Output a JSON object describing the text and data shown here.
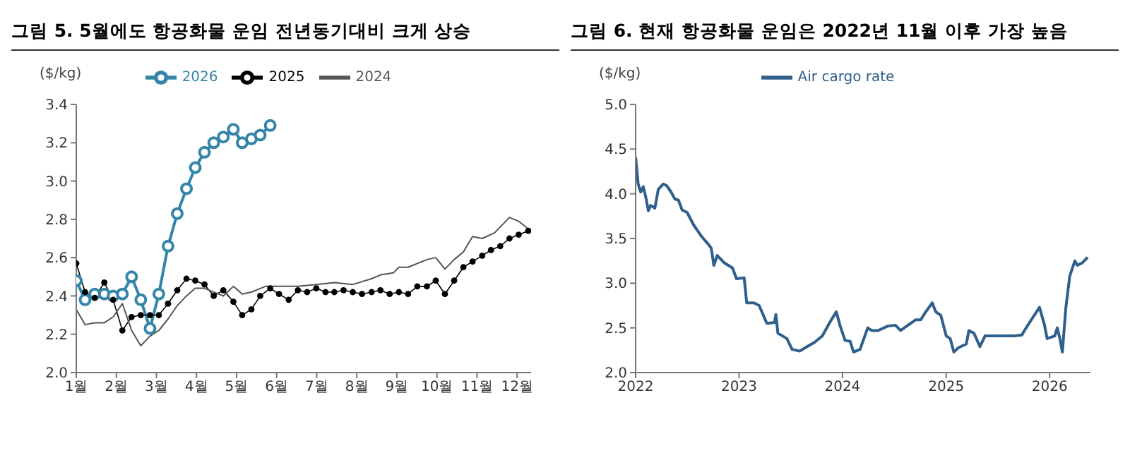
{
  "chart_data": [
    {
      "type": "line",
      "title": "그림 5. 5월에도 항공화물 운임 전년동기대비 크게 상승",
      "ylabel": "($/kg)",
      "xlim": [
        1,
        12.35
      ],
      "xticks": [
        {
          "value": 1,
          "label": "1월"
        },
        {
          "value": 2,
          "label": "2월"
        },
        {
          "value": 3,
          "label": "3월"
        },
        {
          "value": 4,
          "label": "4월"
        },
        {
          "value": 5,
          "label": "5월"
        },
        {
          "value": 6,
          "label": "6월"
        },
        {
          "value": 7,
          "label": "7월"
        },
        {
          "value": 8,
          "label": "8월"
        },
        {
          "value": 9,
          "label": "9월"
        },
        {
          "value": 10,
          "label": "10월"
        },
        {
          "value": 11,
          "label": "11월"
        },
        {
          "value": 12,
          "label": "12월"
        }
      ],
      "ylim": [
        2,
        3.4
      ],
      "yticks": [
        {
          "value": 2,
          "label": "2.0"
        },
        {
          "value": 2.2,
          "label": "2.2"
        },
        {
          "value": 2.4,
          "label": "2.4"
        },
        {
          "value": 2.6,
          "label": "2.6"
        },
        {
          "value": 2.8,
          "label": "2.8"
        },
        {
          "value": 3,
          "label": "3.0"
        },
        {
          "value": 3.2,
          "label": "3.2"
        },
        {
          "value": 3.4,
          "label": "3.4"
        }
      ],
      "legend": "top",
      "series": [
        {
          "name": "2026",
          "color": "#3485a8",
          "marker": "circle",
          "x": [
            1.0,
            1.22,
            1.46,
            1.7,
            1.92,
            2.15,
            2.38,
            2.61,
            2.84,
            3.06,
            3.29,
            3.52,
            3.75,
            3.97,
            4.2,
            4.43,
            4.67,
            4.92,
            5.14,
            5.37,
            5.59,
            5.84
          ],
          "values": [
            2.48,
            2.38,
            2.41,
            2.41,
            2.4,
            2.41,
            2.5,
            2.38,
            2.23,
            2.41,
            2.66,
            2.83,
            2.96,
            3.07,
            3.15,
            3.2,
            3.23,
            3.27,
            3.2,
            3.22,
            3.24,
            3.29
          ]
        },
        {
          "name": "2025",
          "color": "#000000",
          "marker": "circle",
          "x": [
            1.0,
            1.22,
            1.46,
            1.7,
            1.92,
            2.15,
            2.38,
            2.61,
            2.84,
            3.06,
            3.29,
            3.52,
            3.75,
            3.97,
            4.2,
            4.43,
            4.67,
            4.92,
            5.14,
            5.37,
            5.59,
            5.84,
            6.06,
            6.3,
            6.53,
            6.76,
            6.99,
            7.22,
            7.44,
            7.67,
            7.9,
            8.13,
            8.37,
            8.59,
            8.82,
            9.05,
            9.28,
            9.51,
            9.75,
            9.97,
            10.2,
            10.43,
            10.66,
            10.89,
            11.13,
            11.35,
            11.58,
            11.81,
            12.04,
            12.28
          ],
          "values": [
            2.57,
            2.42,
            2.39,
            2.47,
            2.38,
            2.22,
            2.29,
            2.3,
            2.3,
            2.3,
            2.36,
            2.43,
            2.49,
            2.48,
            2.46,
            2.4,
            2.43,
            2.37,
            2.3,
            2.33,
            2.4,
            2.44,
            2.41,
            2.38,
            2.43,
            2.42,
            2.44,
            2.42,
            2.42,
            2.43,
            2.42,
            2.41,
            2.42,
            2.43,
            2.41,
            2.42,
            2.41,
            2.45,
            2.45,
            2.48,
            2.41,
            2.48,
            2.55,
            2.58,
            2.61,
            2.64,
            2.66,
            2.7,
            2.72,
            2.74
          ]
        },
        {
          "name": "2024",
          "color": "#555555",
          "marker": "none",
          "x": [
            1.0,
            1.22,
            1.46,
            1.7,
            1.92,
            2.15,
            2.38,
            2.61,
            2.84,
            3.06,
            3.29,
            3.52,
            3.75,
            3.97,
            4.2,
            4.43,
            4.67,
            4.92,
            5.14,
            5.37,
            5.72,
            6.06,
            6.53,
            6.99,
            7.44,
            7.9,
            8.37,
            8.59,
            8.91,
            9.05,
            9.28,
            9.75,
            9.97,
            10.2,
            10.43,
            10.66,
            10.89,
            11.13,
            11.44,
            11.81,
            12.04,
            12.28
          ],
          "values": [
            2.33,
            2.25,
            2.26,
            2.26,
            2.29,
            2.36,
            2.22,
            2.14,
            2.19,
            2.22,
            2.28,
            2.35,
            2.4,
            2.44,
            2.44,
            2.42,
            2.4,
            2.45,
            2.41,
            2.42,
            2.45,
            2.45,
            2.45,
            2.46,
            2.47,
            2.46,
            2.49,
            2.51,
            2.52,
            2.55,
            2.55,
            2.59,
            2.6,
            2.54,
            2.59,
            2.63,
            2.71,
            2.7,
            2.73,
            2.81,
            2.79,
            2.75
          ]
        }
      ]
    },
    {
      "type": "line",
      "title": "그림 6. 현재 항공화물 운임은 2022년 11월 이후 가장 높음",
      "ylabel": "($/kg)",
      "xlim": [
        "2022-01-01",
        "2026-05-25"
      ],
      "xticks": [
        "2022",
        "2023",
        "2024",
        "2025",
        "2026"
      ],
      "ylim": [
        2,
        5
      ],
      "yticks": [
        {
          "value": 2,
          "label": "2.0"
        },
        {
          "value": 2.5,
          "label": "2.5"
        },
        {
          "value": 3,
          "label": "3.0"
        },
        {
          "value": 3.5,
          "label": "3.5"
        },
        {
          "value": 4,
          "label": "4.0"
        },
        {
          "value": 4.5,
          "label": "4.5"
        },
        {
          "value": 5,
          "label": "5.0"
        }
      ],
      "legend": "top",
      "series": [
        {
          "name": "Air cargo rate",
          "color": "#2f5f8c",
          "marker": "none",
          "x": [
            "2022-01-01",
            "2022-01-10",
            "2022-01-19",
            "2022-01-28",
            "2022-02-06",
            "2022-02-15",
            "2022-02-23",
            "2022-03-10",
            "2022-03-22",
            "2022-04-09",
            "2022-04-21",
            "2022-05-06",
            "2022-05-20",
            "2022-06-01",
            "2022-06-14",
            "2022-07-02",
            "2022-07-25",
            "2022-08-20",
            "2022-09-16",
            "2022-09-25",
            "2022-10-04",
            "2022-10-16",
            "2022-11-09",
            "2022-12-09",
            "2022-12-23",
            "2023-01-19",
            "2023-01-28",
            "2023-02-23",
            "2023-03-13",
            "2023-04-09",
            "2023-05-06",
            "2023-05-11",
            "2023-05-18",
            "2023-06-19",
            "2023-07-07",
            "2023-08-03",
            "2023-08-29",
            "2023-09-25",
            "2023-10-22",
            "2023-11-17",
            "2023-12-10",
            "2023-12-23",
            "2024-01-10",
            "2024-01-28",
            "2024-02-09",
            "2024-03-03",
            "2024-03-30",
            "2024-04-13",
            "2024-05-05",
            "2024-06-09",
            "2024-07-06",
            "2024-07-24",
            "2024-08-19",
            "2024-09-15",
            "2024-10-03",
            "2024-10-21",
            "2024-11-13",
            "2024-11-25",
            "2024-12-13",
            "2025-01-01",
            "2025-01-15",
            "2025-01-28",
            "2025-02-14",
            "2025-03-13",
            "2025-03-22",
            "2025-04-09",
            "2025-04-30",
            "2025-05-18",
            "2025-07-07",
            "2025-08-29",
            "2025-09-25",
            "2025-10-04",
            "2025-10-22",
            "2025-11-26",
            "2025-12-14",
            "2025-12-23",
            "2026-01-19",
            "2026-01-28",
            "2026-02-06",
            "2026-02-15",
            "2026-02-27",
            "2026-03-13",
            "2026-03-31",
            "2026-04-09",
            "2026-04-27",
            "2026-05-15"
          ],
          "values": [
            4.41,
            4.11,
            4.02,
            4.08,
            3.96,
            3.81,
            3.87,
            3.84,
            4.05,
            4.11,
            4.09,
            4.02,
            3.94,
            3.93,
            3.82,
            3.79,
            3.65,
            3.53,
            3.43,
            3.39,
            3.2,
            3.31,
            3.23,
            3.17,
            3.05,
            3.06,
            2.78,
            2.78,
            2.75,
            2.55,
            2.56,
            2.65,
            2.44,
            2.38,
            2.26,
            2.24,
            2.29,
            2.34,
            2.41,
            2.56,
            2.68,
            2.53,
            2.36,
            2.35,
            2.23,
            2.26,
            2.5,
            2.47,
            2.47,
            2.52,
            2.53,
            2.47,
            2.53,
            2.59,
            2.59,
            2.68,
            2.78,
            2.68,
            2.64,
            2.41,
            2.38,
            2.23,
            2.28,
            2.32,
            2.47,
            2.44,
            2.29,
            2.41,
            2.41,
            2.41,
            2.42,
            2.47,
            2.56,
            2.73,
            2.53,
            2.38,
            2.41,
            2.5,
            2.38,
            2.23,
            2.72,
            3.08,
            3.25,
            3.2,
            3.23,
            3.29
          ]
        }
      ]
    }
  ]
}
